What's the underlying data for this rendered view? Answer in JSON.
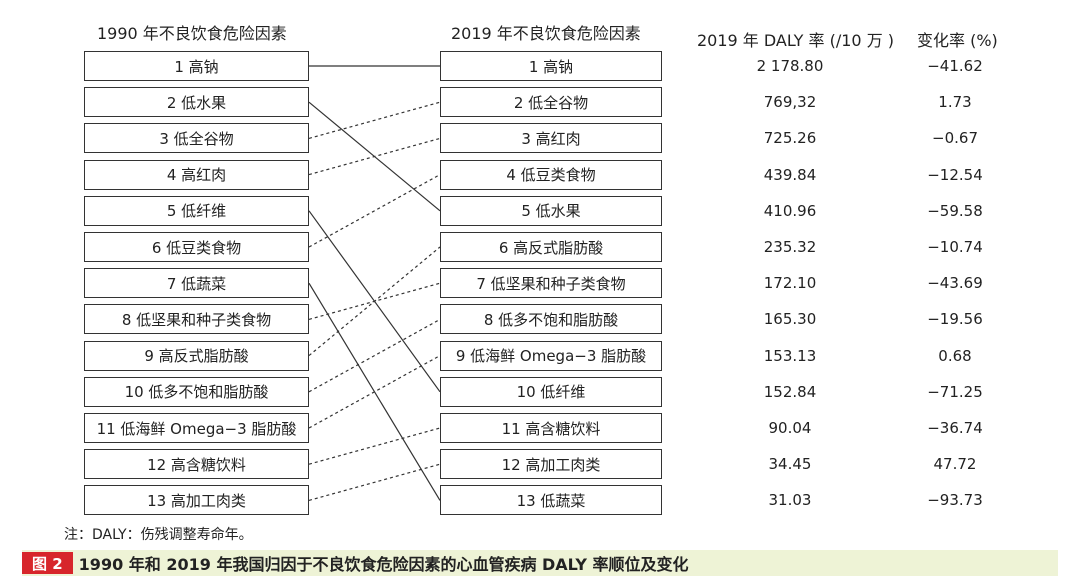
{
  "headers": {
    "left": "1990 年不良饮食危险因素",
    "right": "2019 年不良饮食危险因素",
    "daly": "2019 年 DALY 率 (/10 万 )",
    "change": "变化率 (%)"
  },
  "left_items": [
    "1 高钠",
    "2 低水果",
    "3 低全谷物",
    "4 高红肉",
    "5 低纤维",
    "6 低豆类食物",
    "7 低蔬菜",
    "8 低坚果和种子类食物",
    "9 高反式脂肪酸",
    "10 低多不饱和脂肪酸",
    "11 低海鲜 Omega−3 脂肪酸",
    "12 高含糖饮料",
    "13 高加工肉类"
  ],
  "right_items": [
    "1 高钠",
    "2 低全谷物",
    "3 高红肉",
    "4 低豆类食物",
    "5 低水果",
    "6 高反式脂肪酸",
    "7 低坚果和种子类食物",
    "8 低多不饱和脂肪酸",
    "9 低海鲜 Omega−3 脂肪酸",
    "10 低纤维",
    "11 高含糖饮料",
    "12 高加工肉类",
    "13 低蔬菜"
  ],
  "daly_values": [
    "2 178.80",
    "769,32",
    "725.26",
    "439.84",
    "410.96",
    "235.32",
    "172.10",
    "165.30",
    "153.13",
    "152.84",
    "90.04",
    "34.45",
    "31.03"
  ],
  "change_values": [
    "−41.62",
    "1.73",
    "−0.67",
    "−12.54",
    "−59.58",
    "−10.74",
    "−43.69",
    "−19.56",
    "0.68",
    "−71.25",
    "−36.74",
    "47.72",
    "−93.73"
  ],
  "links": [
    {
      "from": 1,
      "to": 1,
      "style": "solid"
    },
    {
      "from": 2,
      "to": 5,
      "style": "solid"
    },
    {
      "from": 3,
      "to": 2,
      "style": "dashed"
    },
    {
      "from": 4,
      "to": 3,
      "style": "dashed"
    },
    {
      "from": 5,
      "to": 10,
      "style": "solid"
    },
    {
      "from": 6,
      "to": 4,
      "style": "dashed"
    },
    {
      "from": 7,
      "to": 13,
      "style": "solid"
    },
    {
      "from": 8,
      "to": 7,
      "style": "dashed"
    },
    {
      "from": 9,
      "to": 6,
      "style": "dashed"
    },
    {
      "from": 10,
      "to": 8,
      "style": "dashed"
    },
    {
      "from": 11,
      "to": 9,
      "style": "dashed"
    },
    {
      "from": 12,
      "to": 11,
      "style": "dashed"
    },
    {
      "from": 13,
      "to": 12,
      "style": "dashed"
    }
  ],
  "note": "注：DALY：伤残调整寿命年。",
  "caption": {
    "tag": "图 2",
    "text": "1990 年和 2019 年我国归因于不良饮食危险因素的心血管疾病 DALY 率顺位及变化"
  }
}
